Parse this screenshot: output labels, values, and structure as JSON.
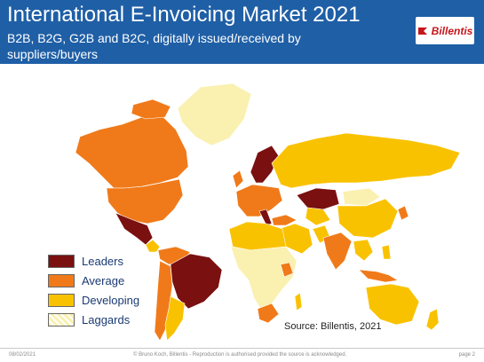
{
  "header": {
    "title": "International E-Invoicing Market 2021",
    "subtitle": "B2B, B2G, G2B and B2C, digitally issued/received by suppliers/buyers",
    "logo_text": "Billentis"
  },
  "legend": [
    {
      "label": "Leaders",
      "color": "#7a1010"
    },
    {
      "label": "Average",
      "color": "#f07a1a"
    },
    {
      "label": "Developing",
      "color": "#f9c200"
    },
    {
      "label": "Laggards",
      "color": "#faf0b0"
    }
  ],
  "map": {
    "source": "Source: Billentis, 2021"
  },
  "footer": {
    "date": "08/02/2021",
    "copyright": "© Bruno Koch, Billentis - Reproduction is authorised provided the source is acknowledged.",
    "page": "page 2"
  }
}
